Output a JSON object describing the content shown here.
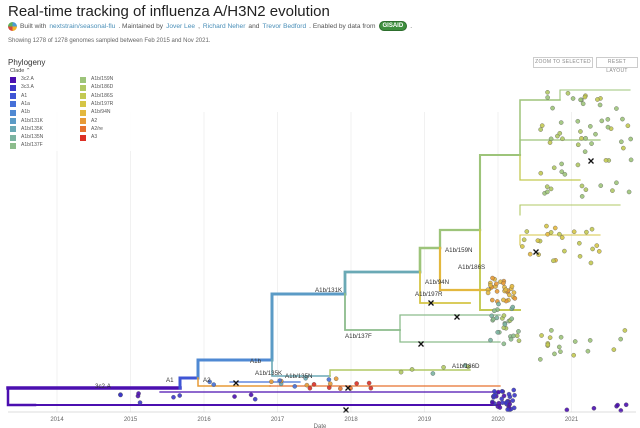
{
  "header": {
    "title": "Real-time tracking of influenza A/H3N2 evolution",
    "built_with": "Built with",
    "build_link": "nextstrain/seasonal-flu",
    "maintained_by": ". Maintained by",
    "maintainer_1": "Jover Lee",
    "sep_1": ",",
    "maintainer_2": "Richard Neher",
    "and_text": "and",
    "maintainer_3": "Trevor Bedford",
    "enabled_text": ". Enabled by data from",
    "gisaid_label": "GISAID",
    "end_text": "."
  },
  "summary": "Showing 1278 of 1278 genomes sampled between Feb 2015 and Nov 2021.",
  "panel": {
    "title": "Phylogeny",
    "zoom_button": "ZOOM TO SELECTED",
    "reset_button": "RESET LAYOUT"
  },
  "legend": {
    "title": "Clade",
    "title_icon": "chevron-up-icon",
    "items": [
      {
        "label": "3c2.A",
        "color": "#4b0fb0"
      },
      {
        "label": "3c3.A",
        "color": "#3b36c9"
      },
      {
        "label": "A1",
        "color": "#3f55d5"
      },
      {
        "label": "A1a",
        "color": "#4570d8"
      },
      {
        "label": "A1b",
        "color": "#4f89d3"
      },
      {
        "label": "A1b/131K",
        "color": "#5b9bc6"
      },
      {
        "label": "A1b/135K",
        "color": "#6aa9b5"
      },
      {
        "label": "A1b/135N",
        "color": "#7bb3a1"
      },
      {
        "label": "A1b/137F",
        "color": "#8cbc8c"
      },
      {
        "label": "A1b/159N",
        "color": "#9dc47a"
      },
      {
        "label": "A1b/186D",
        "color": "#b0c864"
      },
      {
        "label": "A1b/186S",
        "color": "#c3c952"
      },
      {
        "label": "A1b/197R",
        "color": "#d5c546"
      },
      {
        "label": "A1b/94N",
        "color": "#e3b83e"
      },
      {
        "label": "A2",
        "color": "#e79a36"
      },
      {
        "label": "A2/re",
        "color": "#e6722f"
      },
      {
        "label": "A3",
        "color": "#dc2f24"
      }
    ]
  },
  "tree": {
    "xlabel": "Date",
    "year_ticks": [
      "2014",
      "2015",
      "2016",
      "2017",
      "2018",
      "2019",
      "2020",
      "2021"
    ],
    "clade_labels": [
      "3c2.A",
      "A1",
      "A2",
      "A1b",
      "A1b/135K",
      "A1b/135N",
      "A1b/131K",
      "A1b/137F",
      "A1b/197R",
      "A1b/94N",
      "A1b/186S",
      "A1b/159N",
      "A1b/186D"
    ],
    "stats": {
      "genomes_shown": 1278,
      "genomes_total": 1278
    }
  }
}
